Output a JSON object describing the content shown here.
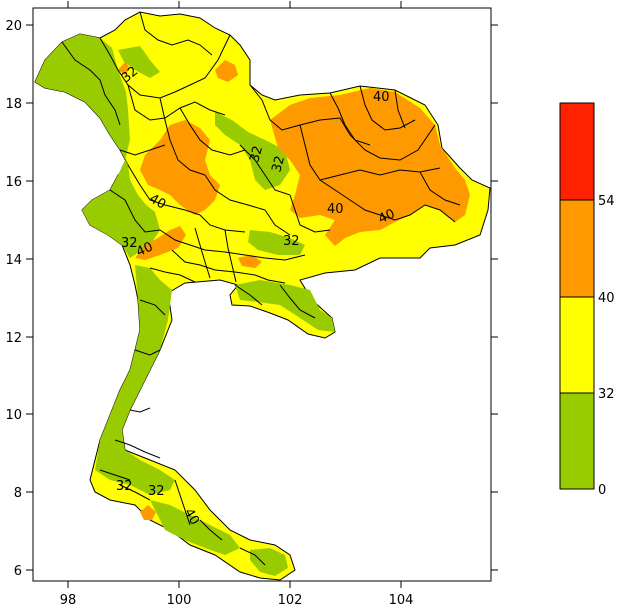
{
  "map": {
    "x_ticks": [
      "98",
      "100",
      "102",
      "104"
    ],
    "y_ticks": [
      "20",
      "18",
      "16",
      "14",
      "12",
      "10",
      "8",
      "6"
    ],
    "contour_labels": [
      "32",
      "32",
      "32",
      "40",
      "40",
      "40",
      "40",
      "32",
      "40",
      "32",
      "32",
      "32",
      "40"
    ],
    "colors": {
      "green": "#99cc00",
      "yellow": "#ffff00",
      "orange": "#ff9900",
      "red": "#ff2200",
      "border": "#000000"
    }
  },
  "legend": {
    "bins": [
      {
        "from": "0",
        "to": "32",
        "color": "#99cc00"
      },
      {
        "from": "32",
        "to": "40",
        "color": "#ffff00"
      },
      {
        "from": "40",
        "to": "54",
        "color": "#ff9900"
      },
      {
        "from": "54",
        "to": "",
        "color": "#ff2200"
      }
    ],
    "labels": [
      "54",
      "40",
      "32",
      "0"
    ]
  }
}
